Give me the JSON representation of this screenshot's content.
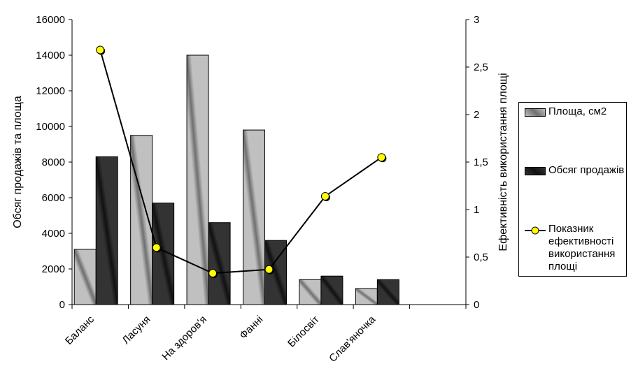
{
  "chart_data": {
    "type": "bar",
    "categories": [
      "Баланс",
      "Ласуня",
      "На здоров'я",
      "Фанні",
      "Білосвіт",
      "Слав'яночка"
    ],
    "series": [
      {
        "name": "Площа, см2",
        "type": "bar",
        "axis": "left",
        "color": "#c0c0c0",
        "values": [
          3100,
          9500,
          14000,
          9800,
          1400,
          900
        ]
      },
      {
        "name": "Обсяг продажів",
        "type": "bar",
        "axis": "left",
        "color": "#333333",
        "values": [
          8300,
          5700,
          4600,
          3600,
          1600,
          1400
        ]
      },
      {
        "name": "Показник ефективності використання площі",
        "type": "line",
        "axis": "right",
        "color": "#000000",
        "marker_color": "#ffff00",
        "values": [
          2.68,
          0.6,
          0.33,
          0.37,
          1.14,
          1.55
        ]
      }
    ],
    "y_left": {
      "label": "Обсяг продажів та площа",
      "lim": [
        0,
        16000
      ],
      "ticks": [
        "0",
        "2000",
        "4000",
        "6000",
        "8000",
        "10000",
        "12000",
        "14000",
        "16000"
      ]
    },
    "y_right": {
      "label": "Ефективність використання площі",
      "lim": [
        0,
        3
      ],
      "ticks": [
        "0",
        "0,5",
        "1",
        "1,5",
        "2",
        "2,5",
        "3"
      ]
    },
    "grid": false,
    "legend_position": "right"
  },
  "legend": {
    "items": [
      "Площа, см2",
      "Обсяг продажів",
      "Показник ефективності використання площі"
    ]
  }
}
